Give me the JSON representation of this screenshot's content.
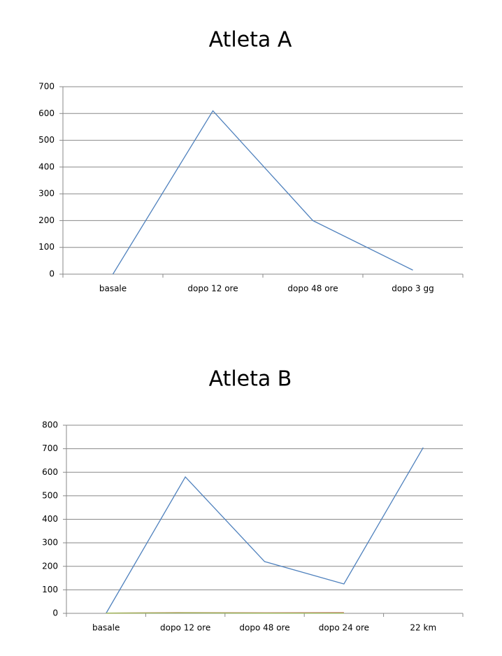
{
  "chart_data": [
    {
      "type": "line",
      "title": "Atleta A",
      "categories": [
        "basale",
        "dopo 12 ore",
        "dopo 48 ore",
        "dopo 3 gg"
      ],
      "series": [
        {
          "color": "#4f81bd",
          "values": [
            0,
            610,
            200,
            15
          ]
        }
      ],
      "ylim": [
        0,
        700
      ],
      "yticks": [
        0,
        100,
        200,
        300,
        400,
        500,
        600,
        700
      ],
      "grid": true
    },
    {
      "type": "line",
      "title": "Atleta B",
      "categories": [
        "basale",
        "dopo 12 ore",
        "dopo 48 ore",
        "dopo 24 ore",
        "22 km"
      ],
      "series": [
        {
          "color": "#4f81bd",
          "values": [
            0,
            580,
            220,
            125,
            705
          ]
        },
        {
          "color": "#c0504d",
          "values": [
            1,
            3,
            2,
            3,
            null
          ]
        },
        {
          "color": "#9bbb59",
          "values": [
            1,
            2,
            1,
            1,
            null
          ]
        }
      ],
      "ylim": [
        0,
        800
      ],
      "yticks": [
        0,
        100,
        200,
        300,
        400,
        500,
        600,
        700,
        800
      ],
      "grid": true
    }
  ]
}
